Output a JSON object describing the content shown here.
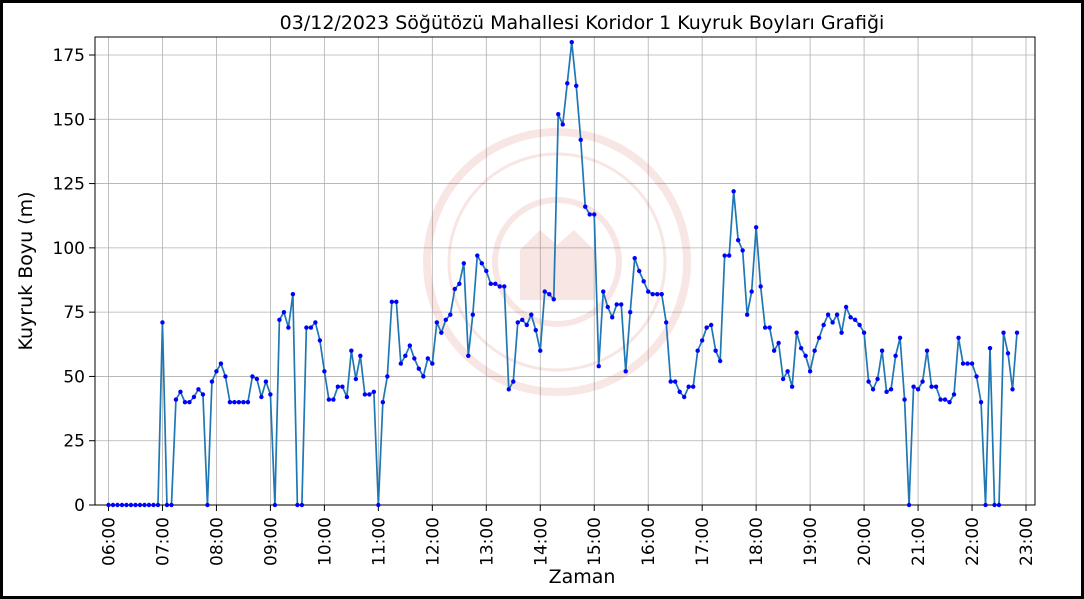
{
  "chart_data": {
    "type": "line",
    "title": "03/12/2023 Söğütözü Mahallesi Koridor 1 Kuyruk Boyları Grafiği",
    "xlabel": "Zaman",
    "ylabel": "Kuyruk Boyu (m)",
    "xlim": [
      "05:45",
      "23:10"
    ],
    "ylim": [
      0,
      182
    ],
    "grid": true,
    "x_ticks": [
      "06:00",
      "07:00",
      "08:00",
      "09:00",
      "10:00",
      "11:00",
      "12:00",
      "13:00",
      "14:00",
      "15:00",
      "16:00",
      "17:00",
      "18:00",
      "19:00",
      "20:00",
      "21:00",
      "22:00",
      "23:00"
    ],
    "y_ticks": [
      0,
      25,
      50,
      75,
      100,
      125,
      150,
      175
    ],
    "line_color": "#1f77b4",
    "marker_color": "#0000ff",
    "series": [
      {
        "x": [
          "06:00",
          "06:05",
          "06:10",
          "06:15",
          "06:20",
          "06:25",
          "06:30",
          "06:35",
          "06:40",
          "06:45",
          "06:50",
          "06:55",
          "07:00",
          "07:05",
          "07:10",
          "07:15",
          "07:20",
          "07:25",
          "07:30",
          "07:35",
          "07:40",
          "07:45",
          "07:50",
          "07:55",
          "08:00",
          "08:05",
          "08:10",
          "08:15",
          "08:20",
          "08:25",
          "08:30",
          "08:35",
          "08:40",
          "08:45",
          "08:50",
          "08:55",
          "09:00",
          "09:05",
          "09:10",
          "09:15",
          "09:20",
          "09:25",
          "09:30",
          "09:35",
          "09:40",
          "09:45",
          "09:50",
          "09:55",
          "10:00",
          "10:05",
          "10:10",
          "10:15",
          "10:20",
          "10:25",
          "10:30",
          "10:35",
          "10:40",
          "10:45",
          "10:50",
          "10:55",
          "11:00",
          "11:05",
          "11:10",
          "11:15",
          "11:20",
          "11:25",
          "11:30",
          "11:35",
          "11:40",
          "11:45",
          "11:50",
          "11:55",
          "12:00",
          "12:05",
          "12:10",
          "12:15",
          "12:20",
          "12:25",
          "12:30",
          "12:35",
          "12:40",
          "12:45",
          "12:50",
          "12:55",
          "13:00",
          "13:05",
          "13:10",
          "13:15",
          "13:20",
          "13:25",
          "13:30",
          "13:35",
          "13:40",
          "13:45",
          "13:50",
          "13:55",
          "14:00",
          "14:05",
          "14:10",
          "14:15",
          "14:20",
          "14:25",
          "14:30",
          "14:35",
          "14:40",
          "14:45",
          "14:50",
          "14:55",
          "15:00",
          "15:05",
          "15:10",
          "15:15",
          "15:20",
          "15:25",
          "15:30",
          "15:35",
          "15:40",
          "15:45",
          "15:50",
          "15:55",
          "16:00",
          "16:05",
          "16:10",
          "16:15",
          "16:20",
          "16:25",
          "16:30",
          "16:35",
          "16:40",
          "16:45",
          "16:50",
          "16:55",
          "17:00",
          "17:05",
          "17:10",
          "17:15",
          "17:20",
          "17:25",
          "17:30",
          "17:35",
          "17:40",
          "17:45",
          "17:50",
          "17:55",
          "18:00",
          "18:05",
          "18:10",
          "18:15",
          "18:20",
          "18:25",
          "18:30",
          "18:35",
          "18:40",
          "18:45",
          "18:50",
          "18:55",
          "19:00",
          "19:05",
          "19:10",
          "19:15",
          "19:20",
          "19:25",
          "19:30",
          "19:35",
          "19:40",
          "19:45",
          "19:50",
          "19:55",
          "20:00",
          "20:05",
          "20:10",
          "20:15",
          "20:20",
          "20:25",
          "20:30",
          "20:35",
          "20:40",
          "20:45",
          "20:50",
          "20:55",
          "21:00",
          "21:05",
          "21:10",
          "21:15",
          "21:20",
          "21:25",
          "21:30",
          "21:35",
          "21:40",
          "21:45",
          "21:50",
          "21:55",
          "22:00",
          "22:05",
          "22:10",
          "22:15",
          "22:20",
          "22:25",
          "22:30",
          "22:35",
          "22:40",
          "22:45",
          "22:50"
        ],
        "y": [
          0,
          0,
          0,
          0,
          0,
          0,
          0,
          0,
          0,
          0,
          0,
          0,
          71,
          0,
          0,
          41,
          44,
          40,
          40,
          42,
          45,
          43,
          0,
          48,
          52,
          55,
          50,
          40,
          40,
          40,
          40,
          40,
          50,
          49,
          42,
          48,
          43,
          0,
          72,
          75,
          69,
          82,
          0,
          0,
          69,
          69,
          71,
          64,
          52,
          41,
          41,
          46,
          46,
          42,
          60,
          49,
          58,
          43,
          43,
          44,
          0,
          40,
          50,
          79,
          79,
          55,
          58,
          62,
          57,
          53,
          50,
          57,
          55,
          71,
          67,
          72,
          74,
          84,
          86,
          94,
          58,
          74,
          97,
          94,
          91,
          86,
          86,
          85,
          85,
          45,
          48,
          71,
          72,
          70,
          74,
          68,
          60,
          83,
          82,
          80,
          152,
          148,
          164,
          180,
          163,
          142,
          116,
          113,
          113,
          54,
          83,
          77,
          73,
          78,
          78,
          52,
          75,
          96,
          91,
          87,
          83,
          82,
          82,
          82,
          71,
          48,
          48,
          44,
          42,
          46,
          46,
          60,
          64,
          69,
          70,
          60,
          56,
          97,
          97,
          122,
          103,
          99,
          74,
          83,
          108,
          85,
          69,
          69,
          60,
          63,
          49,
          52,
          46,
          67,
          61,
          58,
          52,
          60,
          65,
          70,
          74,
          71,
          74,
          67,
          77,
          73,
          72,
          70,
          67,
          48,
          45,
          49,
          60,
          44,
          45,
          58,
          65,
          41,
          0,
          46,
          45,
          48,
          60,
          46,
          46,
          41,
          41,
          40,
          43,
          65,
          55,
          55,
          55,
          50,
          40,
          0,
          61,
          0,
          0,
          67,
          59,
          45,
          67
        ]
      }
    ]
  }
}
